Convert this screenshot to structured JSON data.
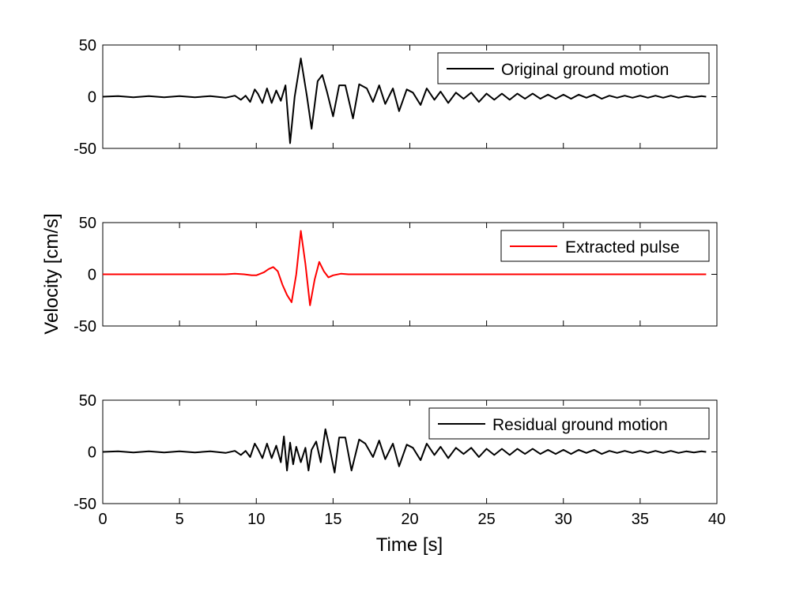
{
  "chart_data": [
    {
      "type": "line",
      "title": "",
      "xlabel": "",
      "ylabel": "",
      "xlim": [
        0,
        40
      ],
      "ylim": [
        -50,
        50
      ],
      "xticks": [
        0,
        5,
        10,
        15,
        20,
        25,
        30,
        35,
        40
      ],
      "yticks": [
        -50,
        0,
        50
      ],
      "show_xtick_labels": false,
      "grid": false,
      "legend_position": "top-right",
      "series": [
        {
          "name": "Original ground motion",
          "color": "#000000",
          "x": [
            0,
            1,
            2,
            3,
            4,
            5,
            6,
            7,
            8,
            8.6,
            9.0,
            9.3,
            9.6,
            9.9,
            10.1,
            10.4,
            10.7,
            11.0,
            11.3,
            11.6,
            11.9,
            12.2,
            12.5,
            12.9,
            13.3,
            13.6,
            14.0,
            14.3,
            14.6,
            15.0,
            15.4,
            15.8,
            16.3,
            16.7,
            17.2,
            17.6,
            18.0,
            18.4,
            18.9,
            19.3,
            19.8,
            20.2,
            20.7,
            21.1,
            21.6,
            22.0,
            22.5,
            23.0,
            23.5,
            24.0,
            24.5,
            25.0,
            25.5,
            26.0,
            26.5,
            27.0,
            27.5,
            28.0,
            28.5,
            29.0,
            29.5,
            30.0,
            30.5,
            31.0,
            31.5,
            32.0,
            32.5,
            33.0,
            33.5,
            34.0,
            34.5,
            35.0,
            35.5,
            36.0,
            36.5,
            37.0,
            37.5,
            38.0,
            38.5,
            39.0,
            39.3
          ],
          "y": [
            0,
            0.5,
            -0.5,
            0.5,
            -0.5,
            0.5,
            -0.5,
            0.5,
            -1,
            1,
            -3,
            1,
            -5,
            7,
            3,
            -6,
            8,
            -6,
            6,
            -4,
            11,
            -45,
            0,
            37,
            0,
            -31,
            15,
            21,
            5,
            -19,
            11,
            11,
            -21,
            12,
            8,
            -5,
            11,
            -7,
            8,
            -14,
            7,
            4,
            -8,
            8,
            -3,
            5,
            -6,
            4,
            -2,
            4,
            -5,
            3,
            -3,
            3,
            -3,
            3,
            -2,
            3,
            -2,
            2,
            -2,
            2,
            -2,
            2,
            -1,
            2,
            -2,
            1,
            -1,
            1,
            -1,
            1,
            -1,
            1,
            -1,
            1,
            -1,
            0.5,
            -0.5,
            0.5,
            0
          ]
        }
      ]
    },
    {
      "type": "line",
      "title": "",
      "xlabel": "",
      "ylabel": "Velocity [cm/s]",
      "xlim": [
        0,
        40
      ],
      "ylim": [
        -50,
        50
      ],
      "xticks": [
        0,
        5,
        10,
        15,
        20,
        25,
        30,
        35,
        40
      ],
      "yticks": [
        -50,
        0,
        50
      ],
      "show_xtick_labels": false,
      "grid": false,
      "legend_position": "top-right",
      "series": [
        {
          "name": "Extracted pulse",
          "color": "#ff0000",
          "x": [
            0,
            5,
            8.0,
            8.6,
            9.2,
            9.7,
            10.0,
            10.5,
            10.8,
            11.1,
            11.4,
            11.7,
            12.0,
            12.3,
            12.6,
            12.9,
            13.2,
            13.5,
            13.8,
            14.1,
            14.4,
            14.7,
            15.0,
            15.5,
            16.0,
            17.0,
            20.0,
            30.0,
            39.3
          ],
          "y": [
            0,
            0,
            0,
            0.5,
            0,
            -1,
            -1,
            2,
            5,
            7,
            3,
            -10,
            -20,
            -27,
            0,
            42,
            10,
            -30,
            -5,
            12,
            3,
            -3,
            -1,
            0.5,
            0,
            0,
            0,
            0,
            0
          ]
        }
      ]
    },
    {
      "type": "line",
      "title": "",
      "xlabel": "Time [s]",
      "ylabel": "",
      "xlim": [
        0,
        40
      ],
      "ylim": [
        -50,
        50
      ],
      "xticks": [
        0,
        5,
        10,
        15,
        20,
        25,
        30,
        35,
        40
      ],
      "yticks": [
        -50,
        0,
        50
      ],
      "show_xtick_labels": true,
      "grid": false,
      "legend_position": "top-right",
      "series": [
        {
          "name": "Residual ground motion",
          "color": "#000000",
          "x": [
            0,
            1,
            2,
            3,
            4,
            5,
            6,
            7,
            8,
            8.6,
            9.0,
            9.3,
            9.6,
            9.9,
            10.1,
            10.4,
            10.7,
            11.0,
            11.3,
            11.6,
            11.8,
            12.0,
            12.2,
            12.4,
            12.6,
            12.9,
            13.2,
            13.4,
            13.6,
            13.9,
            14.2,
            14.5,
            14.8,
            15.1,
            15.4,
            15.8,
            16.2,
            16.7,
            17.1,
            17.6,
            18.0,
            18.4,
            18.9,
            19.3,
            19.8,
            20.2,
            20.7,
            21.1,
            21.6,
            22.0,
            22.5,
            23.0,
            23.5,
            24.0,
            24.5,
            25.0,
            25.5,
            26.0,
            26.5,
            27.0,
            27.5,
            28.0,
            28.5,
            29.0,
            29.5,
            30.0,
            30.5,
            31.0,
            31.5,
            32.0,
            32.5,
            33.0,
            33.5,
            34.0,
            34.5,
            35.0,
            35.5,
            36.0,
            36.5,
            37.0,
            37.5,
            38.0,
            38.5,
            39.0,
            39.3
          ],
          "y": [
            0,
            0.5,
            -0.5,
            0.5,
            -0.5,
            0.5,
            -0.5,
            0.5,
            -1,
            1,
            -3,
            1,
            -5,
            8,
            3,
            -6,
            8,
            -6,
            6,
            -10,
            15,
            -18,
            9,
            -12,
            5,
            -10,
            4,
            -18,
            2,
            10,
            -10,
            22,
            2,
            -20,
            14,
            14,
            -18,
            12,
            8,
            -5,
            11,
            -7,
            8,
            -14,
            7,
            4,
            -8,
            8,
            -3,
            5,
            -6,
            4,
            -2,
            4,
            -5,
            3,
            -3,
            3,
            -3,
            3,
            -2,
            3,
            -2,
            2,
            -2,
            2,
            -2,
            2,
            -1,
            2,
            -2,
            1,
            -1,
            1,
            -1,
            1,
            -1,
            1,
            -1,
            1,
            -1,
            0.5,
            -0.5,
            0.5,
            0
          ]
        }
      ]
    }
  ]
}
